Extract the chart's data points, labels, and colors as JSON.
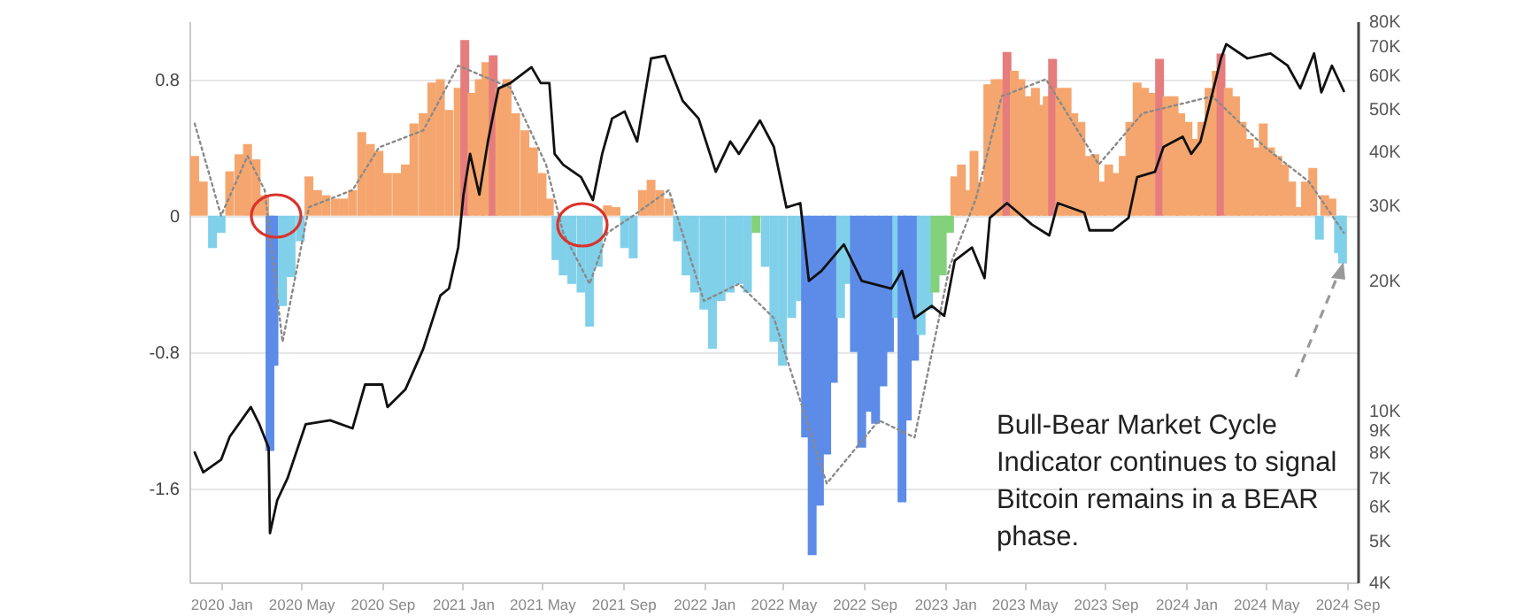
{
  "chart_data": {
    "type": "bar",
    "annotations": [
      "Bull-Bear Market Cycle Indicator continues to signal Bitcoin remains in a BEAR phase."
    ],
    "xlim": [
      "2019-11-14",
      "2024-09-17"
    ],
    "xticks": [
      {
        "value": "2020-01",
        "label": "2020 Jan"
      },
      {
        "value": "2020-05",
        "label": "2020 May"
      },
      {
        "value": "2020-09",
        "label": "2020 Sep"
      },
      {
        "value": "2021-01",
        "label": "2021 Jan"
      },
      {
        "value": "2021-05",
        "label": "2021 May"
      },
      {
        "value": "2021-09",
        "label": "2021 Sep"
      },
      {
        "value": "2022-01",
        "label": "2022 Jan"
      },
      {
        "value": "2022-05",
        "label": "2022 May"
      },
      {
        "value": "2022-09",
        "label": "2022 Sep"
      },
      {
        "value": "2023-01",
        "label": "2023 Jan"
      },
      {
        "value": "2023-05",
        "label": "2023 May"
      },
      {
        "value": "2023-09",
        "label": "2023 Sep"
      },
      {
        "value": "2024-01",
        "label": "2024 Jan"
      },
      {
        "value": "2024-05",
        "label": "2024 May"
      },
      {
        "value": "2024-09",
        "label": "2024 Sep"
      }
    ],
    "ylim": [
      -2.15,
      1.14
    ],
    "yticks": [
      0.8,
      0,
      -0.8,
      -1.6
    ],
    "y2lim": [
      4000,
      80000
    ],
    "y2ticks": [
      {
        "value": 4000,
        "label": "4K"
      },
      {
        "value": 5000,
        "label": "5K"
      },
      {
        "value": 6000,
        "label": "6K"
      },
      {
        "value": 7000,
        "label": "7K"
      },
      {
        "value": 8000,
        "label": "8K"
      },
      {
        "value": 9000,
        "label": "9K"
      },
      {
        "value": 10000,
        "label": "10K"
      },
      {
        "value": 20000,
        "label": "20K"
      },
      {
        "value": 30000,
        "label": "30K"
      },
      {
        "value": 40000,
        "label": "40K"
      },
      {
        "value": 50000,
        "label": "50K"
      },
      {
        "value": 60000,
        "label": "60K"
      },
      {
        "value": 70000,
        "label": "70K"
      },
      {
        "value": 80000,
        "label": "80K"
      }
    ],
    "log": "y2",
    "grid": "y",
    "series": [
      {
        "x": [
          "2019-11-22",
          "2019-12-05",
          "2019-12-19",
          "2020-01-01",
          "2020-01-14",
          "2020-01-28",
          "2020-02-10",
          "2020-02-23",
          "2020-03-07",
          "2020-03-15",
          "2020-03-21",
          "2020-04-03",
          "2020-04-16",
          "2020-04-30",
          "2020-05-13",
          "2020-05-26",
          "2020-06-08",
          "2020-06-22",
          "2020-07-05",
          "2020-07-18",
          "2020-08-01",
          "2020-08-14",
          "2020-08-27",
          "2020-09-09",
          "2020-09-23",
          "2020-10-06",
          "2020-10-19",
          "2020-11-02",
          "2020-11-15",
          "2020-11-28",
          "2020-12-11",
          "2020-12-25",
          "2021-01-04",
          "2021-01-15",
          "2021-01-26",
          "2021-02-05",
          "2021-02-16",
          "2021-02-26",
          "2021-03-09",
          "2021-03-22",
          "2021-04-05",
          "2021-04-18",
          "2021-05-01",
          "2021-05-12",
          "2021-05-22",
          "2021-06-02",
          "2021-06-15",
          "2021-06-29",
          "2021-07-12",
          "2021-07-25",
          "2021-08-08",
          "2021-08-21",
          "2021-09-03",
          "2021-09-16",
          "2021-09-30",
          "2021-10-13",
          "2021-10-26",
          "2021-11-09",
          "2021-11-22",
          "2021-12-05",
          "2021-12-18",
          "2022-01-01",
          "2022-01-14",
          "2022-01-27",
          "2022-02-10",
          "2022-02-23",
          "2022-03-08",
          "2022-03-21",
          "2022-04-04",
          "2022-04-17",
          "2022-04-30",
          "2022-05-14",
          "2022-05-27",
          "2022-06-04",
          "2022-06-14",
          "2022-06-25",
          "2022-07-06",
          "2022-07-16",
          "2022-07-27",
          "2022-08-07",
          "2022-08-17",
          "2022-08-28",
          "2022-09-07",
          "2022-09-18",
          "2022-09-29",
          "2022-10-09",
          "2022-10-20",
          "2022-10-28",
          "2022-11-05",
          "2022-11-16",
          "2022-11-26",
          "2022-12-07",
          "2022-12-17",
          "2022-12-28",
          "2023-01-08",
          "2023-01-16",
          "2023-01-26",
          "2023-02-03",
          "2023-02-14",
          "2023-02-24",
          "2023-03-07",
          "2023-03-18",
          "2023-03-28",
          "2023-04-05",
          "2023-04-16",
          "2023-04-26",
          "2023-05-07",
          "2023-05-18",
          "2023-05-28",
          "2023-06-05",
          "2023-06-13",
          "2023-06-24",
          "2023-07-05",
          "2023-07-15",
          "2023-07-26",
          "2023-08-06",
          "2023-08-16",
          "2023-08-27",
          "2023-09-06",
          "2023-09-17",
          "2023-09-28",
          "2023-10-08",
          "2023-10-19",
          "2023-10-30",
          "2023-11-09",
          "2023-11-22",
          "2023-12-03",
          "2023-12-14",
          "2023-12-24",
          "2024-01-04",
          "2024-01-15",
          "2024-01-25",
          "2024-02-05",
          "2024-02-16",
          "2024-02-23",
          "2024-03-05",
          "2024-03-16",
          "2024-03-26",
          "2024-04-06",
          "2024-04-17",
          "2024-04-27",
          "2024-05-08",
          "2024-05-19",
          "2024-05-29",
          "2024-06-09",
          "2024-06-19",
          "2024-06-30",
          "2024-07-11",
          "2024-07-21",
          "2024-07-29",
          "2024-08-09",
          "2024-08-19",
          "2024-08-25"
        ],
        "values": [
          0.35,
          0.2,
          -0.19,
          -0.1,
          0.26,
          0.36,
          0.42,
          0.33,
          0.12,
          -1.38,
          -0.88,
          -0.53,
          -0.36,
          -0.15,
          0.23,
          0.15,
          0.12,
          0.1,
          0.1,
          0.15,
          0.49,
          0.42,
          0.38,
          0.25,
          0.25,
          0.3,
          0.54,
          0.6,
          0.78,
          0.8,
          0.62,
          0.75,
          1.03,
          0.72,
          0.8,
          0.9,
          0.94,
          0.75,
          0.8,
          0.6,
          0.5,
          0.4,
          0.25,
          0.1,
          -0.26,
          -0.35,
          -0.4,
          -0.45,
          -0.65,
          -0.3,
          0.06,
          0.05,
          -0.19,
          -0.25,
          0.15,
          0.21,
          0.15,
          0.1,
          -0.15,
          -0.35,
          -0.45,
          -0.55,
          -0.78,
          -0.5,
          -0.45,
          -0.4,
          -0.45,
          -0.1,
          -0.3,
          -0.74,
          -0.88,
          -0.6,
          -0.5,
          -1.3,
          -1.99,
          -1.7,
          -1.4,
          -0.98,
          -0.6,
          -0.4,
          -0.8,
          -1.36,
          -1.15,
          -1.22,
          -1.0,
          -0.8,
          -0.6,
          -1.68,
          -1.2,
          -0.85,
          -0.7,
          -0.55,
          -0.45,
          -0.35,
          -0.1,
          0.23,
          0.3,
          0.15,
          0.38,
          0.2,
          0.77,
          0.8,
          0.8,
          0.96,
          0.85,
          0.8,
          0.7,
          0.75,
          0.65,
          0.7,
          0.92,
          0.75,
          0.75,
          0.6,
          0.55,
          0.35,
          0.36,
          0.2,
          0.3,
          0.25,
          0.35,
          0.55,
          0.78,
          0.75,
          0.72,
          0.92,
          0.7,
          0.7,
          0.6,
          0.55,
          0.45,
          0.55,
          0.75,
          0.85,
          0.95,
          0.75,
          0.7,
          0.55,
          0.45,
          0.4,
          0.54,
          0.4,
          0.35,
          0.3,
          0.2,
          0.05,
          0.2,
          0.28,
          -0.14,
          0.12,
          0.1,
          -0.22,
          -0.28
        ],
        "colors": [
          "#f5a66e",
          "#f5a66e",
          "#80d0ea",
          "#80d0ea",
          "#f5a66e",
          "#f5a66e",
          "#f5a66e",
          "#f5a66e",
          "#f5a66e",
          "#5d8be8",
          "#5d8be8",
          "#80d0ea",
          "#80d0ea",
          "#80d0ea",
          "#f5a66e",
          "#f5a66e",
          "#f5a66e",
          "#f5a66e",
          "#f5a66e",
          "#f5a66e",
          "#f5a66e",
          "#f5a66e",
          "#f5a66e",
          "#f5a66e",
          "#f5a66e",
          "#f5a66e",
          "#f5a66e",
          "#f5a66e",
          "#f5a66e",
          "#f5a66e",
          "#f5a66e",
          "#f5a66e",
          "#e67d7d",
          "#f5a66e",
          "#f5a66e",
          "#f5a66e",
          "#e67d7d",
          "#f5a66e",
          "#f5a66e",
          "#f5a66e",
          "#f5a66e",
          "#f5a66e",
          "#f5a66e",
          "#f5a66e",
          "#80d0ea",
          "#80d0ea",
          "#80d0ea",
          "#80d0ea",
          "#80d0ea",
          "#80d0ea",
          "#f5a66e",
          "#f5a66e",
          "#80d0ea",
          "#80d0ea",
          "#f5a66e",
          "#f5a66e",
          "#f5a66e",
          "#f5a66e",
          "#80d0ea",
          "#80d0ea",
          "#80d0ea",
          "#80d0ea",
          "#80d0ea",
          "#80d0ea",
          "#80d0ea",
          "#80d0ea",
          "#80d0ea",
          "#84d17c",
          "#80d0ea",
          "#80d0ea",
          "#80d0ea",
          "#80d0ea",
          "#80d0ea",
          "#5d8be8",
          "#5d8be8",
          "#5d8be8",
          "#5d8be8",
          "#5d8be8",
          "#80d0ea",
          "#80d0ea",
          "#5d8be8",
          "#5d8be8",
          "#5d8be8",
          "#5d8be8",
          "#5d8be8",
          "#5d8be8",
          "#80d0ea",
          "#5d8be8",
          "#5d8be8",
          "#5d8be8",
          "#80d0ea",
          "#80d0ea",
          "#84d17c",
          "#84d17c",
          "#84d17c",
          "#f5a66e",
          "#f5a66e",
          "#f5a66e",
          "#f5a66e",
          "#f5a66e",
          "#f5a66e",
          "#f5a66e",
          "#f5a66e",
          "#e67d7d",
          "#f5a66e",
          "#f5a66e",
          "#f5a66e",
          "#f5a66e",
          "#f5a66e",
          "#f5a66e",
          "#e67d7d",
          "#f5a66e",
          "#f5a66e",
          "#f5a66e",
          "#f5a66e",
          "#f5a66e",
          "#f5a66e",
          "#f5a66e",
          "#f5a66e",
          "#f5a66e",
          "#f5a66e",
          "#f5a66e",
          "#f5a66e",
          "#f5a66e",
          "#f5a66e",
          "#e67d7d",
          "#f5a66e",
          "#f5a66e",
          "#f5a66e",
          "#f5a66e",
          "#f5a66e",
          "#f5a66e",
          "#f5a66e",
          "#f5a66e",
          "#e67d7d",
          "#f5a66e",
          "#f5a66e",
          "#f5a66e",
          "#f5a66e",
          "#f5a66e",
          "#f5a66e",
          "#f5a66e",
          "#f5a66e",
          "#f5a66e",
          "#f5a66e",
          "#f5a66e",
          "#f5a66e",
          "#f5a66e",
          "#80d0ea",
          "#f5a66e",
          "#f5a66e",
          "#80d0ea",
          "#80d0ea"
        ]
      },
      {
        "type": "line",
        "color": "#8a8a8a",
        "line_style": "dotted",
        "x": [
          "2019-11-22",
          "2020-01-01",
          "2020-02-10",
          "2020-03-07",
          "2020-04-03",
          "2020-05-13",
          "2020-07-18",
          "2020-08-27",
          "2020-11-02",
          "2020-12-25",
          "2021-03-14",
          "2021-05-07",
          "2021-06-02",
          "2021-07-12",
          "2021-08-08",
          "2021-09-16",
          "2021-11-09",
          "2022-01-01",
          "2022-02-23",
          "2022-04-17",
          "2022-07-06",
          "2022-09-23",
          "2022-11-16",
          "2023-01-08",
          "2023-02-17",
          "2023-03-28",
          "2023-06-03",
          "2023-08-22",
          "2023-10-27",
          "2024-02-10",
          "2024-04-30",
          "2024-07-05",
          "2024-08-27"
        ],
        "values": [
          0.54,
          0.0,
          0.35,
          0.15,
          -0.74,
          0.05,
          0.15,
          0.4,
          0.5,
          0.88,
          0.75,
          0.3,
          -0.1,
          -0.4,
          -0.1,
          0.0,
          0.15,
          -0.5,
          -0.4,
          -0.6,
          -1.57,
          -1.2,
          -1.3,
          -0.3,
          0.1,
          0.7,
          0.8,
          0.3,
          0.6,
          0.7,
          0.4,
          0.2,
          -0.1
        ]
      },
      {
        "type": "line",
        "axis": "y2",
        "color": "#111111",
        "line_style": "solid",
        "x": [
          "2019-11-22",
          "2019-12-05",
          "2020-01-01",
          "2020-01-14",
          "2020-02-15",
          "2020-02-28",
          "2020-03-13",
          "2020-03-15",
          "2020-03-26",
          "2020-04-11",
          "2020-05-08",
          "2020-06-14",
          "2020-07-18",
          "2020-08-06",
          "2020-09-01",
          "2020-09-09",
          "2020-10-06",
          "2020-11-02",
          "2020-11-28",
          "2020-12-11",
          "2020-12-25",
          "2021-01-02",
          "2021-01-12",
          "2021-01-26",
          "2021-02-08",
          "2021-02-24",
          "2021-03-14",
          "2021-04-15",
          "2021-04-29",
          "2021-05-12",
          "2021-05-20",
          "2021-06-02",
          "2021-06-29",
          "2021-07-17",
          "2021-07-31",
          "2021-08-15",
          "2021-09-03",
          "2021-09-22",
          "2021-10-13",
          "2021-11-03",
          "2021-11-30",
          "2021-12-24",
          "2022-01-19",
          "2022-02-10",
          "2022-02-23",
          "2022-03-27",
          "2022-04-17",
          "2022-05-06",
          "2022-05-27",
          "2022-06-09",
          "2022-06-28",
          "2022-08-01",
          "2022-08-28",
          "2022-10-12",
          "2022-10-28",
          "2022-11-16",
          "2022-12-12",
          "2022-12-31",
          "2023-01-16",
          "2023-02-11",
          "2023-03-02",
          "2023-03-10",
          "2023-04-05",
          "2023-05-13",
          "2023-06-08",
          "2023-06-21",
          "2023-07-31",
          "2023-08-08",
          "2023-09-12",
          "2023-10-06",
          "2023-10-19",
          "2023-11-15",
          "2023-11-28",
          "2023-12-27",
          "2024-01-09",
          "2024-01-23",
          "2024-02-23",
          "2024-03-02",
          "2024-04-03",
          "2024-05-08",
          "2024-06-03",
          "2024-06-22",
          "2024-07-13",
          "2024-07-24",
          "2024-08-09",
          "2024-08-27"
        ],
        "values": [
          8000,
          7200,
          7700,
          8700,
          10200,
          9300,
          8200,
          5200,
          6200,
          7000,
          9300,
          9500,
          9100,
          11500,
          11500,
          10200,
          11200,
          13900,
          18500,
          19200,
          23900,
          31700,
          39400,
          31700,
          42100,
          55900,
          57500,
          62600,
          57500,
          57500,
          39400,
          37200,
          34800,
          30800,
          39400,
          47600,
          49400,
          42100,
          65600,
          66500,
          52300,
          47600,
          35800,
          42100,
          39400,
          47100,
          40900,
          29600,
          30300,
          20000,
          21100,
          24300,
          20000,
          19200,
          21100,
          16400,
          17500,
          16600,
          22300,
          23900,
          20300,
          28000,
          30300,
          27000,
          25500,
          30300,
          28800,
          26200,
          26200,
          28000,
          34800,
          35800,
          40900,
          43200,
          39400,
          42100,
          65600,
          70800,
          65600,
          67400,
          63100,
          55900,
          67400,
          54700,
          63100,
          55100
        ]
      }
    ]
  }
}
